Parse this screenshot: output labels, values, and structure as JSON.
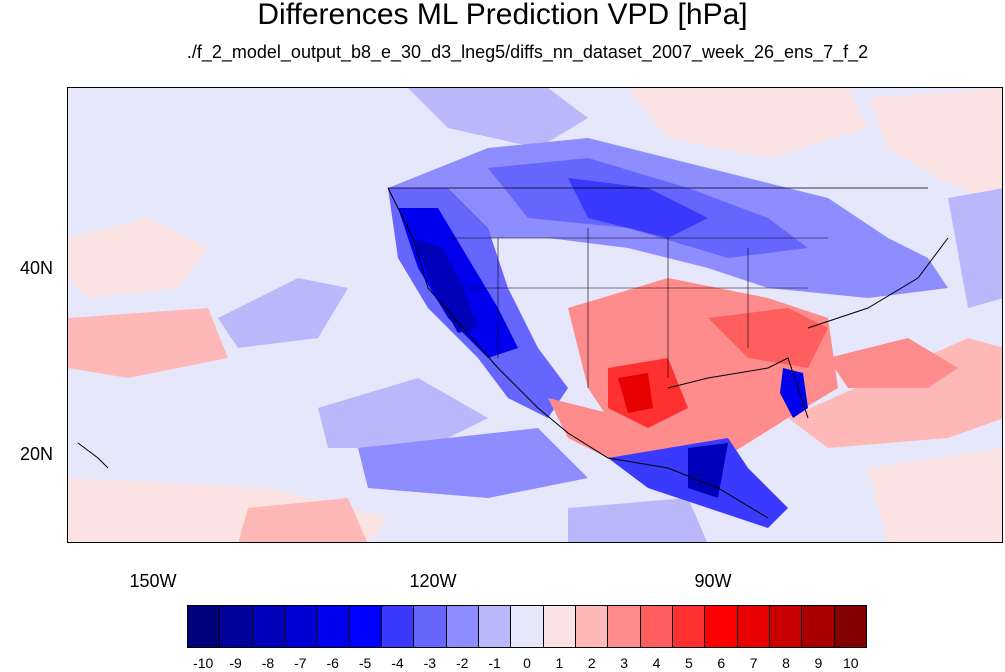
{
  "figure": {
    "title": "Differences ML Prediction VPD [hPa]",
    "subtitle": "./f_2_model_output_b8_e_30_d3_lneg5/diffs_nn_dataset_2007_week_26_ens_7_f_2"
  },
  "map": {
    "lat_labels": [
      "40N",
      "20N"
    ],
    "lon_labels": [
      "150W",
      "120W",
      "90W"
    ],
    "extent": {
      "lon": [
        -159,
        -59
      ],
      "lat": [
        10,
        58
      ]
    },
    "colors": {
      "background": "#e7e7fb",
      "coast": "#000000"
    }
  },
  "colorbar": {
    "labels": [
      "-10",
      "-9",
      "-8",
      "-7",
      "-6",
      "-5",
      "-4",
      "-3",
      "-2",
      "-1",
      "0",
      "1",
      "2",
      "3",
      "4",
      "5",
      "6",
      "7",
      "8",
      "9",
      "10"
    ],
    "colors": [
      "#00007a",
      "#00009a",
      "#0000b8",
      "#0000d4",
      "#0000ef",
      "#0000ff",
      "#3a3aff",
      "#6666ff",
      "#8d8dff",
      "#b8b8fb",
      "#e7e7fb",
      "#fce3e3",
      "#ffb8b8",
      "#ff8c8c",
      "#ff5e5e",
      "#ff3030",
      "#ff0000",
      "#e60000",
      "#c80000",
      "#a80000",
      "#820000"
    ]
  }
}
